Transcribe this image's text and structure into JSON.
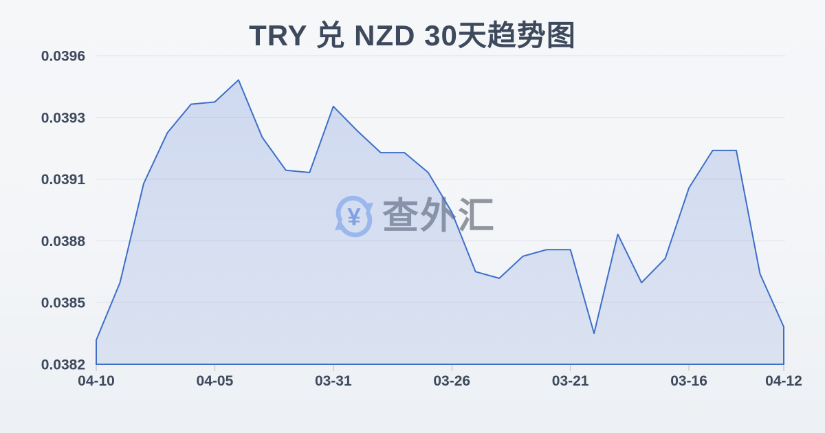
{
  "watermark": {
    "text": "查外汇",
    "icon": "currency-exchange-refresh-icon"
  },
  "colors": {
    "background_top": "#f6f7f9",
    "background_bottom": "#edf0f4",
    "title_text": "#3d495c",
    "axis_label": "#3d495c",
    "grid_line": "#e4e7ec",
    "axis_tick": "#c9cdd4",
    "line": "#3d6ec8",
    "area_fill": "#6386d5",
    "watermark_text": "#8e939b",
    "watermark_icon": "#a9c5f3",
    "watermark_icon_symbol": "#87a9e5"
  },
  "chart_data": {
    "type": "area",
    "title": "TRY 兑 NZD 30天趋势图",
    "xlabel": "",
    "ylabel": "",
    "ylim": [
      0.0382,
      0.0396
    ],
    "grid": true,
    "legend": false,
    "y_tick_labels": [
      "0.0396",
      "0.0393",
      "0.0391",
      "0.0388",
      "0.0385",
      "0.0382"
    ],
    "x_tick_labels": [
      {
        "index": 0,
        "label": "04-10"
      },
      {
        "index": 5,
        "label": "04-05"
      },
      {
        "index": 10,
        "label": "03-31"
      },
      {
        "index": 15,
        "label": "03-26"
      },
      {
        "index": 20,
        "label": "03-21"
      },
      {
        "index": 25,
        "label": "03-16"
      },
      {
        "index": 29,
        "label": "04-12"
      }
    ],
    "values": [
      0.03831,
      0.03857,
      0.03902,
      0.03925,
      0.03938,
      0.03939,
      0.03949,
      0.03923,
      0.03908,
      0.03907,
      0.03937,
      0.03926,
      0.03916,
      0.03916,
      0.03907,
      0.03889,
      0.03862,
      0.03859,
      0.03869,
      0.03872,
      0.03872,
      0.03834,
      0.03879,
      0.03857,
      0.03868,
      0.039,
      0.03917,
      0.03917,
      0.03861,
      0.03837
    ]
  }
}
